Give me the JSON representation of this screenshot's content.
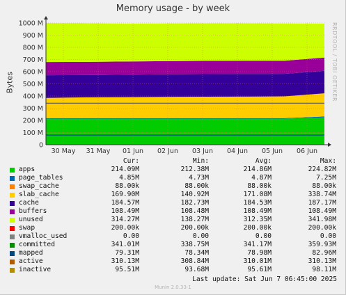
{
  "chart_data": {
    "type": "area",
    "title": "Memory usage - by week",
    "ylabel": "Bytes",
    "ylim": [
      0,
      1000000000
    ],
    "yticks": [
      "0",
      "100 M",
      "200 M",
      "300 M",
      "400 M",
      "500 M",
      "600 M",
      "700 M",
      "800 M",
      "900 M",
      "1000 M"
    ],
    "x": [
      "30 May",
      "31 May",
      "01 Jun",
      "02 Jun",
      "03 Jun",
      "04 Jun",
      "05 Jun",
      "06 Jun"
    ],
    "grid": true,
    "stacked_series": [
      {
        "name": "apps",
        "color": "#00cc00",
        "values": [
          214.09,
          214.09,
          214.09,
          214.09,
          214.09,
          214.09,
          214.09,
          224.82
        ]
      },
      {
        "name": "page_tables",
        "color": "#0066b3",
        "values": [
          4.85,
          4.85,
          4.85,
          4.85,
          4.85,
          4.85,
          4.85,
          7.25
        ]
      },
      {
        "name": "swap_cache",
        "color": "#ff8000",
        "values": [
          0.088,
          0.088,
          0.088,
          0.088,
          0.088,
          0.088,
          0.088,
          0.088
        ]
      },
      {
        "name": "slab_cache",
        "color": "#ffcc00",
        "values": [
          165,
          170,
          172,
          174,
          175,
          176,
          178,
          190
        ]
      },
      {
        "name": "cache",
        "color": "#330099",
        "values": [
          187,
          183,
          184,
          185,
          186,
          186,
          185,
          185
        ]
      },
      {
        "name": "buffers",
        "color": "#990099",
        "values": [
          108.49,
          108.49,
          108.49,
          108.49,
          108.49,
          108.49,
          108.49,
          108.49
        ]
      },
      {
        "name": "unused",
        "color": "#ccff00",
        "values": [
          320,
          318,
          312,
          310,
          309,
          308,
          306,
          280
        ]
      }
    ],
    "line_series": [
      {
        "name": "committed",
        "color": "#555555",
        "values": [
          341.01,
          341.01,
          341.01,
          341.01,
          341.01,
          341.01,
          341.01,
          341.01
        ]
      },
      {
        "name": "mapped",
        "color": "#024b82",
        "values": [
          79.31,
          79.31,
          79.31,
          79.31,
          79.31,
          79.31,
          79.31,
          79.31
        ]
      },
      {
        "name": "inactive",
        "color": "#b8860b",
        "values": [
          95.51,
          95.51,
          95.51,
          95.51,
          95.51,
          95.51,
          95.51,
          95.51
        ]
      }
    ]
  },
  "legend": {
    "headers": {
      "cur": "Cur:",
      "min": "Min:",
      "avg": "Avg:",
      "max": "Max:"
    },
    "rows": [
      {
        "name": "apps",
        "color": "#00cc00",
        "cur": "214.09M",
        "min": "212.38M",
        "avg": "214.86M",
        "max": "224.82M"
      },
      {
        "name": "page_tables",
        "color": "#0066b3",
        "cur": "4.85M",
        "min": "4.73M",
        "avg": "4.87M",
        "max": "7.25M"
      },
      {
        "name": "swap_cache",
        "color": "#ff8000",
        "cur": "88.00k",
        "min": "88.00k",
        "avg": "88.00k",
        "max": "88.00k"
      },
      {
        "name": "slab_cache",
        "color": "#ffcc00",
        "cur": "169.90M",
        "min": "140.92M",
        "avg": "171.08M",
        "max": "338.74M"
      },
      {
        "name": "cache",
        "color": "#330099",
        "cur": "184.57M",
        "min": "182.73M",
        "avg": "184.53M",
        "max": "187.17M"
      },
      {
        "name": "buffers",
        "color": "#990099",
        "cur": "108.49M",
        "min": "108.48M",
        "avg": "108.49M",
        "max": "108.49M"
      },
      {
        "name": "unused",
        "color": "#ccff00",
        "cur": "314.27M",
        "min": "138.27M",
        "avg": "312.35M",
        "max": "341.98M"
      },
      {
        "name": "swap",
        "color": "#ff0000",
        "cur": "200.00k",
        "min": "200.00k",
        "avg": "200.00k",
        "max": "200.00k"
      },
      {
        "name": "vmalloc_used",
        "color": "#808080",
        "cur": "0.00",
        "min": "0.00",
        "avg": "0.00",
        "max": "0.00"
      },
      {
        "name": "committed",
        "color": "#008f00",
        "cur": "341.01M",
        "min": "338.75M",
        "avg": "341.17M",
        "max": "359.93M"
      },
      {
        "name": "mapped",
        "color": "#00487d",
        "cur": "79.31M",
        "min": "78.34M",
        "avg": "78.98M",
        "max": "82.96M"
      },
      {
        "name": "active",
        "color": "#b35a00",
        "cur": "310.13M",
        "min": "308.84M",
        "avg": "310.01M",
        "max": "310.13M"
      },
      {
        "name": "inactive",
        "color": "#b38f00",
        "cur": "95.51M",
        "min": "93.68M",
        "avg": "95.61M",
        "max": "98.11M"
      }
    ]
  },
  "side_note": "RRDTOOL / TOBI OETIKER",
  "last_update": "Last update:  Sat Jun  7 06:45:00 2025",
  "footer": "Munin 2.0.33-1"
}
